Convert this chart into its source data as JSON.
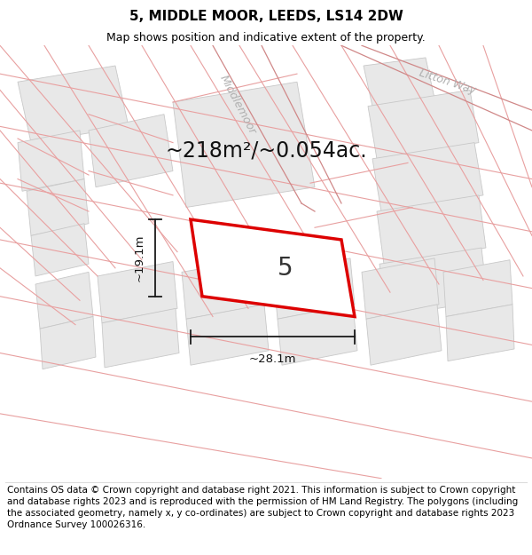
{
  "title": "5, MIDDLE MOOR, LEEDS, LS14 2DW",
  "subtitle": "Map shows position and indicative extent of the property.",
  "footer": "Contains OS data © Crown copyright and database right 2021. This information is subject to Crown copyright and database rights 2023 and is reproduced with the permission of HM Land Registry. The polygons (including the associated geometry, namely x, y co-ordinates) are subject to Crown copyright and database rights 2023 Ordnance Survey 100026316.",
  "area_label": "~218m²/~0.054ac.",
  "width_label": "~28.1m",
  "height_label": "~19.1m",
  "plot_number": "5",
  "bg_color": "#f8f8f8",
  "building_color": "#e8e8e8",
  "plot_outline_color": "#dd0000",
  "street_label_color": "#b0b0b0",
  "property_line_color": "#e8a0a0",
  "building_outline_color": "#c8c8c8",
  "dim_line_color": "#1a1a1a",
  "title_fontsize": 11,
  "subtitle_fontsize": 9,
  "footer_fontsize": 7.5,
  "area_fontsize": 17,
  "plot_num_fontsize": 20,
  "dim_fontsize": 9.5,
  "street_fontsize": 9,
  "white": "#ffffff",
  "header_separator": "#dddddd"
}
